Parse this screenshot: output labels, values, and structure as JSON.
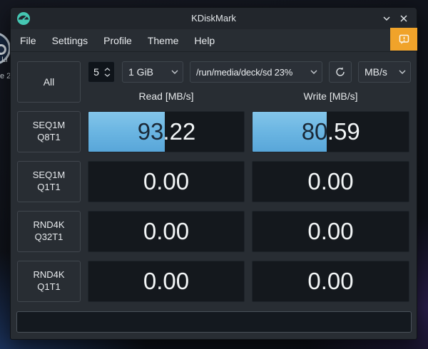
{
  "window": {
    "title": "KDiskMark"
  },
  "menu": {
    "items": [
      "File",
      "Settings",
      "Profile",
      "Theme",
      "Help"
    ]
  },
  "toolbar": {
    "all_label": "All",
    "loop_count": "5",
    "block_size": "1 GiB",
    "target_path": "/run/media/deck/sd 23%",
    "unit": "MB/s"
  },
  "columns": {
    "read": "Read [MB/s]",
    "write": "Write [MB/s]"
  },
  "rows": [
    {
      "label": [
        "SEQ1M",
        "Q8T1"
      ],
      "read": "93.22",
      "write": "80.59"
    },
    {
      "label": [
        "SEQ1M",
        "Q1T1"
      ],
      "read": "0.00",
      "write": "0.00"
    },
    {
      "label": [
        "RND4K",
        "Q32T1"
      ],
      "read": "0.00",
      "write": "0.00"
    },
    {
      "label": [
        "RND4K",
        "Q1T1"
      ],
      "read": "0.00",
      "write": "0.00"
    }
  ],
  "status_field": {
    "value": ""
  },
  "desktop": {
    "fragments": [
      "Li",
      "e 2"
    ]
  },
  "colors": {
    "accent_blue": "#6db7e3",
    "warning_orange": "#f0a32a",
    "window_bg": "#282d33",
    "cell_bg": "#14181d"
  }
}
